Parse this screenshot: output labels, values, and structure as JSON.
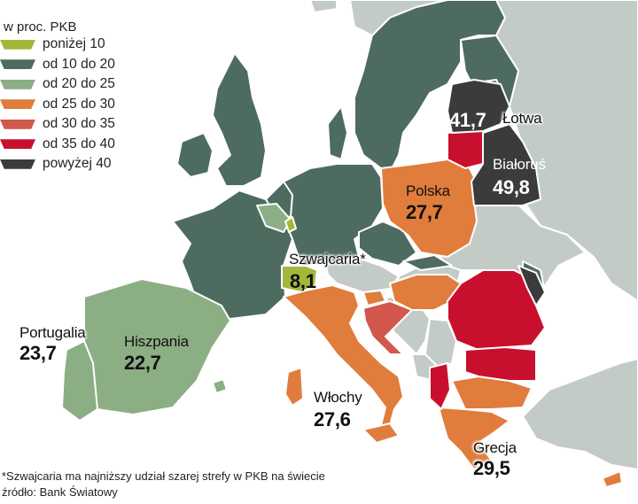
{
  "legend": {
    "title": "w proc. PKB",
    "items": [
      {
        "label": "poniżej 10",
        "color": "#a3b83a"
      },
      {
        "label": "od 10 do 20",
        "color": "#4d6b5f"
      },
      {
        "label": "od 20 do 25",
        "color": "#8cae85"
      },
      {
        "label": "od 25 do 30",
        "color": "#e07d3c"
      },
      {
        "label": "od 30 do 35",
        "color": "#d2574c"
      },
      {
        "label": "od 35 do 40",
        "color": "#c8102e"
      },
      {
        "label": "powyżej 40",
        "color": "#3b3b3b"
      }
    ]
  },
  "countries": [
    {
      "name": "Portugalia",
      "value": "23,7",
      "color": "#8cae85"
    },
    {
      "name": "Hiszpania",
      "value": "22,7",
      "color": "#8cae85"
    },
    {
      "name": "Szwajcaria*",
      "value": "8,1",
      "color": "#a3b83a"
    },
    {
      "name": "Włochy",
      "value": "27,6",
      "color": "#e07d3c"
    },
    {
      "name": "Polska",
      "value": "27,7",
      "color": "#e07d3c"
    },
    {
      "name": "Łotwa",
      "value": "41,7",
      "color": "#3b3b3b"
    },
    {
      "name": "Białoruś",
      "value": "49,8",
      "color": "#3b3b3b"
    },
    {
      "name": "Grecja",
      "value": "29,5",
      "color": "#e07d3c"
    }
  ],
  "other_colors": {
    "no_data": "#c3cbc6",
    "border": "#ffffff"
  },
  "footnote": {
    "note": "*Szwajcaria ma najniższy udział szarej strefy w PKB na świecie",
    "source": "źródło: Bank Światowy"
  }
}
